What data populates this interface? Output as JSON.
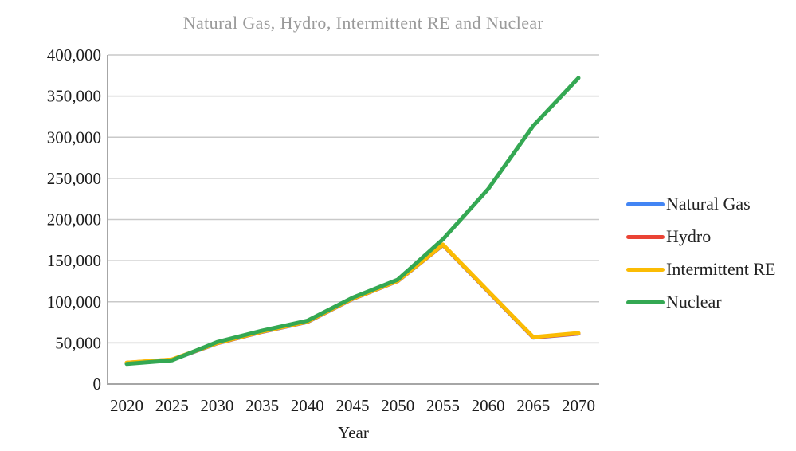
{
  "chart_data": {
    "type": "line",
    "title": "Natural Gas, Hydro, Intermittent RE and Nuclear",
    "xlabel": "Year",
    "ylabel": "",
    "categories": [
      2020,
      2025,
      2030,
      2035,
      2040,
      2045,
      2050,
      2055,
      2060,
      2065,
      2070
    ],
    "series": [
      {
        "name": "Natural Gas",
        "color": "#4285F4",
        "values": [
          25600,
          29400,
          49400,
          63400,
          75400,
          103400,
          125100,
          169000,
          112400,
          56400,
          61200
        ]
      },
      {
        "name": "Hydro",
        "color": "#EA4335",
        "values": [
          25800,
          29600,
          49600,
          63600,
          75600,
          103600,
          125300,
          169200,
          112700,
          56700,
          61500
        ]
      },
      {
        "name": "Intermittent RE",
        "color": "#FBBC04",
        "values": [
          26000,
          29800,
          49800,
          63800,
          75800,
          103800,
          125500,
          169500,
          113000,
          57000,
          62000
        ]
      },
      {
        "name": "Nuclear",
        "color": "#34A853",
        "values": [
          24500,
          28800,
          51000,
          65000,
          77000,
          105000,
          127000,
          176000,
          237000,
          314000,
          372000
        ]
      }
    ],
    "ylim": [
      0,
      400000
    ],
    "ytick_step": 50000,
    "ytick_labels": [
      "0",
      "50,000",
      "100,000",
      "150,000",
      "200,000",
      "250,000",
      "300,000",
      "350,000",
      "400,000"
    ],
    "xtick_labels": [
      "2020",
      "2025",
      "2030",
      "2035",
      "2040",
      "2045",
      "2050",
      "2055",
      "2060",
      "2065",
      "2070"
    ],
    "grid": "horizontal",
    "legend_position": "right"
  },
  "styles": {
    "title_color": "#9a9a9a",
    "axis_text_color": "#1c1c1c",
    "gridline_color": "#c9c9c9",
    "axis_line_color": "#a6a6a6",
    "background": "#ffffff"
  }
}
